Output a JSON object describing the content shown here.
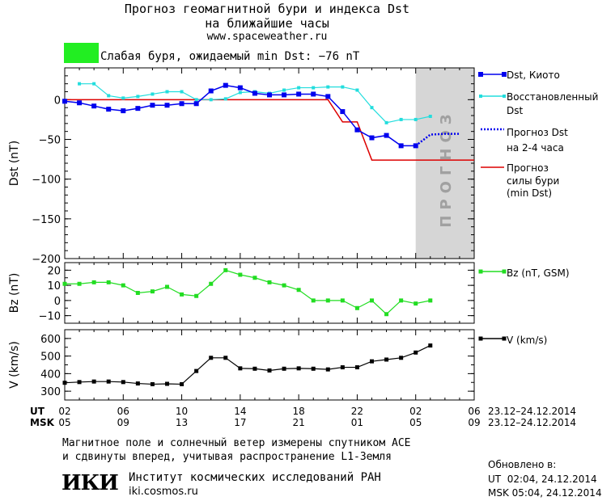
{
  "header": {
    "title_line1": "Прогноз геомагнитной бури и индекса Dst",
    "title_line2": "на ближайшие часы",
    "url": "www.spaceweather.ru",
    "storm_label": "Слабая буря, ожидаемый min Dst: −76 nT",
    "storm_color": "#22ee22"
  },
  "colors": {
    "dst_kyoto": "#0000ee",
    "dst_restored": "#22dddd",
    "dst_forecast": "#0000ee",
    "storm_forecast": "#dd0000",
    "bz": "#22dd22",
    "v": "#000000",
    "forecast_band": "#d6d6d6"
  },
  "forecast_band_label": "ПРОГНОЗ",
  "chart_data": [
    {
      "type": "line",
      "panel": "dst",
      "ylabel": "Dst (nT)",
      "ylim": [
        -200,
        40
      ],
      "yticks": [
        -200,
        -150,
        -100,
        -50,
        0
      ],
      "x": [
        0,
        1,
        2,
        3,
        4,
        5,
        6,
        7,
        8,
        9,
        10,
        11,
        12,
        13,
        14,
        15,
        16,
        17,
        18,
        19,
        20,
        21,
        22,
        23,
        24,
        25,
        26,
        27,
        28
      ],
      "series": [
        {
          "name": "Dst, Киото",
          "x": [
            0,
            1,
            2,
            3,
            4,
            5,
            6,
            7,
            8,
            9,
            10,
            11,
            12,
            13,
            14,
            15,
            16,
            17,
            18,
            19,
            20,
            21,
            22,
            23,
            24
          ],
          "values": [
            -2,
            -4,
            -8,
            -12,
            -14,
            -11,
            -7,
            -7,
            -5,
            -5,
            11,
            18,
            15,
            8,
            6,
            6,
            7,
            7,
            4,
            -15,
            -38,
            -48,
            -45,
            -58,
            -58
          ]
        },
        {
          "name": "Восстановленный Dst",
          "x": [
            1,
            2,
            3,
            4,
            5,
            6,
            7,
            8,
            9,
            10,
            11,
            12,
            13,
            14,
            15,
            16,
            17,
            18,
            19,
            20,
            21,
            22,
            23,
            24,
            25
          ],
          "values": [
            20,
            20,
            5,
            2,
            4,
            7,
            10,
            10,
            0,
            0,
            1,
            9,
            10,
            8,
            12,
            15,
            15,
            16,
            16,
            12,
            -10,
            -29,
            -25,
            -25,
            -21
          ]
        },
        {
          "name": "Прогноз Dst на 2-4 часа",
          "x": [
            24,
            25,
            26,
            27
          ],
          "values": [
            -58,
            -44,
            -43,
            -43
          ]
        },
        {
          "name": "Прогноз силы бури (min Dst)",
          "x": [
            0,
            18,
            19,
            20,
            21,
            22,
            23,
            24,
            25,
            26,
            27,
            28
          ],
          "values": [
            0,
            0,
            -28,
            -28,
            -76,
            -76,
            -76,
            -76,
            -76,
            -76,
            -76,
            -76
          ]
        }
      ]
    },
    {
      "type": "line",
      "panel": "bz",
      "ylabel": "Bz (nT)",
      "ylim": [
        -15,
        25
      ],
      "yticks": [
        -10,
        0,
        10,
        20
      ],
      "series": [
        {
          "name": "Bz (nT, GSM)",
          "x": [
            0,
            1,
            2,
            3,
            4,
            5,
            6,
            7,
            8,
            9,
            10,
            11,
            12,
            13,
            14,
            15,
            16,
            17,
            18,
            19,
            20,
            21,
            22,
            23,
            24,
            25
          ],
          "values": [
            11,
            11,
            12,
            12,
            10,
            5,
            6,
            9,
            4,
            3,
            11,
            20,
            17,
            15,
            12,
            10,
            7,
            0,
            0,
            0,
            -5,
            0,
            -9,
            0,
            -2,
            0
          ]
        }
      ]
    },
    {
      "type": "line",
      "panel": "v",
      "ylabel": "V (km/s)",
      "ylim": [
        250,
        650
      ],
      "yticks": [
        300,
        400,
        500,
        600
      ],
      "series": [
        {
          "name": "V (km/s)",
          "x": [
            0,
            1,
            2,
            3,
            4,
            5,
            6,
            7,
            8,
            9,
            10,
            11,
            12,
            13,
            14,
            15,
            16,
            17,
            18,
            19,
            20,
            21,
            22,
            23,
            24,
            25
          ],
          "values": [
            348,
            352,
            355,
            355,
            352,
            344,
            340,
            342,
            340,
            415,
            490,
            490,
            430,
            428,
            418,
            428,
            430,
            428,
            424,
            436,
            436,
            470,
            480,
            490,
            520,
            560
          ]
        }
      ]
    }
  ],
  "time_axis": {
    "ut_label": "UT",
    "msk_label": "MSK",
    "ut_ticks": [
      "02",
      "06",
      "10",
      "14",
      "18",
      "22",
      "02",
      "06"
    ],
    "msk_ticks": [
      "05",
      "09",
      "13",
      "17",
      "21",
      "01",
      "05",
      "09"
    ],
    "ut_range": "23.12–24.12.2014",
    "msk_range": "23.12–24.12.2014"
  },
  "legend": {
    "dst_kyoto": "Dst, Киото",
    "dst_restored_1": "Восстановленный",
    "dst_restored_2": "Dst",
    "dst_forecast_1": "Прогноз Dst",
    "dst_forecast_2": "на 2-4 часа",
    "storm_1": "Прогноз",
    "storm_2": "силы бури",
    "storm_3": "(min Dst)",
    "bz": "Bz (nT, GSM)",
    "v": "V (km/s)"
  },
  "footer": {
    "note_line1": "Магнитное поле и солнечный ветер измерены спутником ACE",
    "note_line2": "и сдвинуты вперед, учитывая распространение L1-Земля",
    "logo_text": "ИКИ",
    "institute": "Институт космических исследований РАН",
    "institute_url": "iki.cosmos.ru",
    "updated_label": "Обновлено в:",
    "updated_ut": "UT  02:04, 24.12.2014",
    "updated_msk": "MSK 05:04, 24.12.2014"
  }
}
